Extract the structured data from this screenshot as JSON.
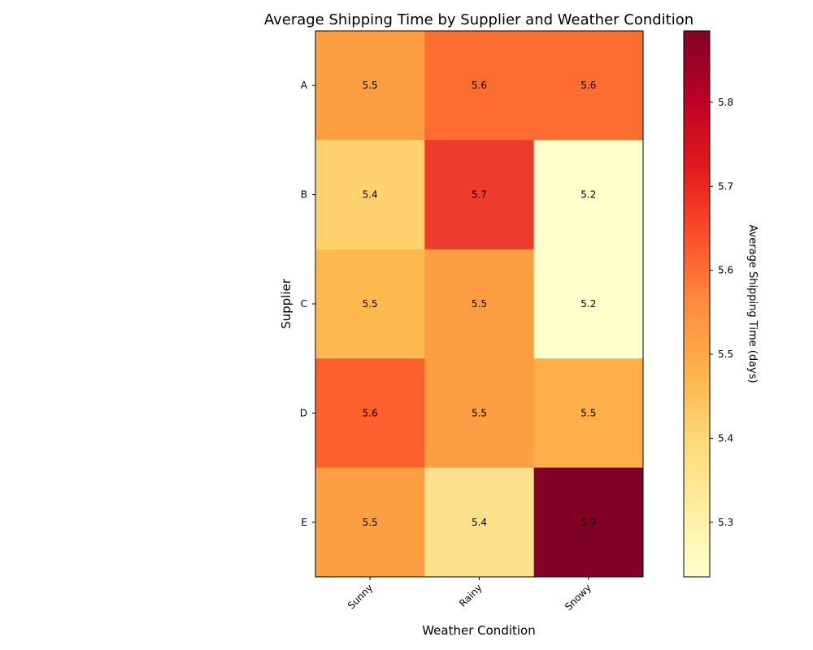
{
  "chart_data": {
    "type": "heatmap",
    "title": "Average Shipping Time by Supplier and Weather Condition",
    "xlabel": "Weather Condition",
    "ylabel": "Supplier",
    "x_categories": [
      "Sunny",
      "Rainy",
      "Snowy"
    ],
    "y_categories": [
      "A",
      "B",
      "C",
      "D",
      "E"
    ],
    "values": [
      [
        5.5,
        5.6,
        5.6
      ],
      [
        5.4,
        5.7,
        5.2
      ],
      [
        5.5,
        5.5,
        5.2
      ],
      [
        5.6,
        5.5,
        5.5
      ],
      [
        5.5,
        5.4,
        5.9
      ]
    ],
    "colormap": "YlOrRd",
    "colorbar": {
      "label": "Average Shipping Time (days)",
      "range": [
        5.235,
        5.885
      ],
      "ticks": [
        5.3,
        5.4,
        5.5,
        5.6,
        5.7,
        5.8
      ],
      "tick_labels": [
        "5.3",
        "5.4",
        "5.5",
        "5.6",
        "5.7",
        "5.8"
      ]
    },
    "cell_colors": [
      [
        "#fd9e43",
        "#fd6d32",
        "#fd6d32"
      ],
      [
        "#fed26d",
        "#ef3b2c",
        "#ffffcc"
      ],
      [
        "#feb94e",
        "#fd9e43",
        "#ffffcc"
      ],
      [
        "#fd5f2d",
        "#fd9e43",
        "#feaf49"
      ],
      [
        "#fd9e43",
        "#fee08c",
        "#800026"
      ]
    ],
    "colorbar_stops": [
      "#ffffcc",
      "#ffeda0",
      "#fed976",
      "#feb24c",
      "#fd8d3c",
      "#fc4e2a",
      "#e31a1c",
      "#bd0026",
      "#800026"
    ]
  }
}
